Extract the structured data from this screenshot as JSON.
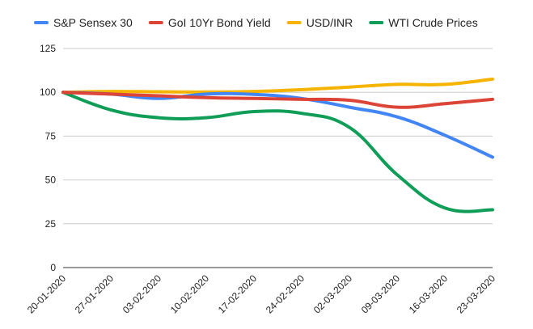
{
  "chart_data": {
    "type": "line",
    "title": "",
    "xlabel": "",
    "ylabel": "",
    "categories": [
      "20-01-2020",
      "27-01-2020",
      "03-02-2020",
      "10-02-2020",
      "17-02-2020",
      "24-02-2020",
      "02-03-2020",
      "09-03-2020",
      "16-03-2020",
      "23-03-2020"
    ],
    "ylim": [
      0,
      125
    ],
    "yticks": [
      0,
      25,
      50,
      75,
      100,
      125
    ],
    "ytick_labels": [
      "0",
      "25",
      "50",
      "75",
      "100",
      "125"
    ],
    "grid": true,
    "legend_position": "top",
    "series": [
      {
        "name": "S&P Sensex 30",
        "color": "#4285F4",
        "values": [
          100,
          99,
          96.5,
          99,
          98.8,
          96.5,
          91.5,
          86,
          75.5,
          63
        ]
      },
      {
        "name": "GoI 10Yr Bond Yield",
        "color": "#DB4437",
        "values": [
          100,
          99,
          98,
          97,
          96.5,
          96,
          95.5,
          91.5,
          93.5,
          96
        ]
      },
      {
        "name": "USD/INR",
        "color": "#F4B400",
        "values": [
          100,
          100.5,
          100.3,
          100.2,
          100.5,
          101.5,
          103,
          104.5,
          104.5,
          107.5
        ]
      },
      {
        "name": "WTI Crude Prices",
        "color": "#0F9D58",
        "values": [
          100,
          90,
          85.5,
          85.5,
          89,
          88,
          80,
          53,
          34,
          33
        ]
      }
    ]
  }
}
